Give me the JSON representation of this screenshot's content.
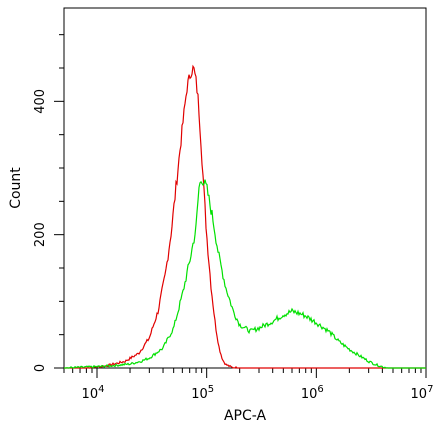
{
  "chart_data": {
    "type": "line",
    "title": "",
    "xlabel": "APC-A",
    "ylabel": "Count",
    "x_scale": "log",
    "xlim": [
      5000,
      10000000
    ],
    "ylim": [
      0,
      540
    ],
    "x_ticks": [
      {
        "value": 10000,
        "base": "10",
        "exp": "4"
      },
      {
        "value": 100000,
        "base": "10",
        "exp": "5"
      },
      {
        "value": 1000000,
        "base": "10",
        "exp": "6"
      },
      {
        "value": 10000000,
        "base": "10",
        "exp": "7"
      }
    ],
    "y_ticks": [
      {
        "value": 0,
        "label": "0"
      },
      {
        "value": 200,
        "label": "200"
      },
      {
        "value": 400,
        "label": "400"
      }
    ],
    "grid": false,
    "legend": "none",
    "series": [
      {
        "color": "#e00000",
        "x": [
          5000,
          8000,
          12000,
          18000,
          24000,
          30000,
          36000,
          42000,
          48000,
          54000,
          60000,
          66000,
          72000,
          76000,
          80000,
          84000,
          88000,
          94000,
          100000,
          110000,
          120000,
          130000,
          140000,
          150000,
          170000,
          200000,
          10000000
        ],
        "y": [
          0,
          0,
          3,
          10,
          22,
          45,
          85,
          140,
          210,
          290,
          360,
          420,
          445,
          450,
          430,
          400,
          350,
          270,
          200,
          120,
          65,
          30,
          12,
          5,
          1,
          0,
          0
        ]
      },
      {
        "color": "#00e000",
        "x": [
          5000,
          10000,
          15000,
          20000,
          25000,
          30000,
          40000,
          50000,
          60000,
          70000,
          80000,
          85000,
          90000,
          100000,
          115000,
          130000,
          150000,
          175000,
          200000,
          250000,
          300000,
          400000,
          500000,
          600000,
          700000,
          800000,
          1000000,
          1300000,
          1600000,
          2000000,
          2500000,
          3000000,
          3500000,
          4000000,
          4500000,
          10000000
        ],
        "y": [
          0,
          2,
          4,
          6,
          10,
          15,
          30,
          60,
          110,
          160,
          210,
          270,
          285,
          270,
          220,
          165,
          120,
          85,
          65,
          55,
          60,
          70,
          80,
          85,
          82,
          78,
          68,
          55,
          40,
          28,
          18,
          10,
          5,
          2,
          0,
          0
        ]
      }
    ]
  }
}
